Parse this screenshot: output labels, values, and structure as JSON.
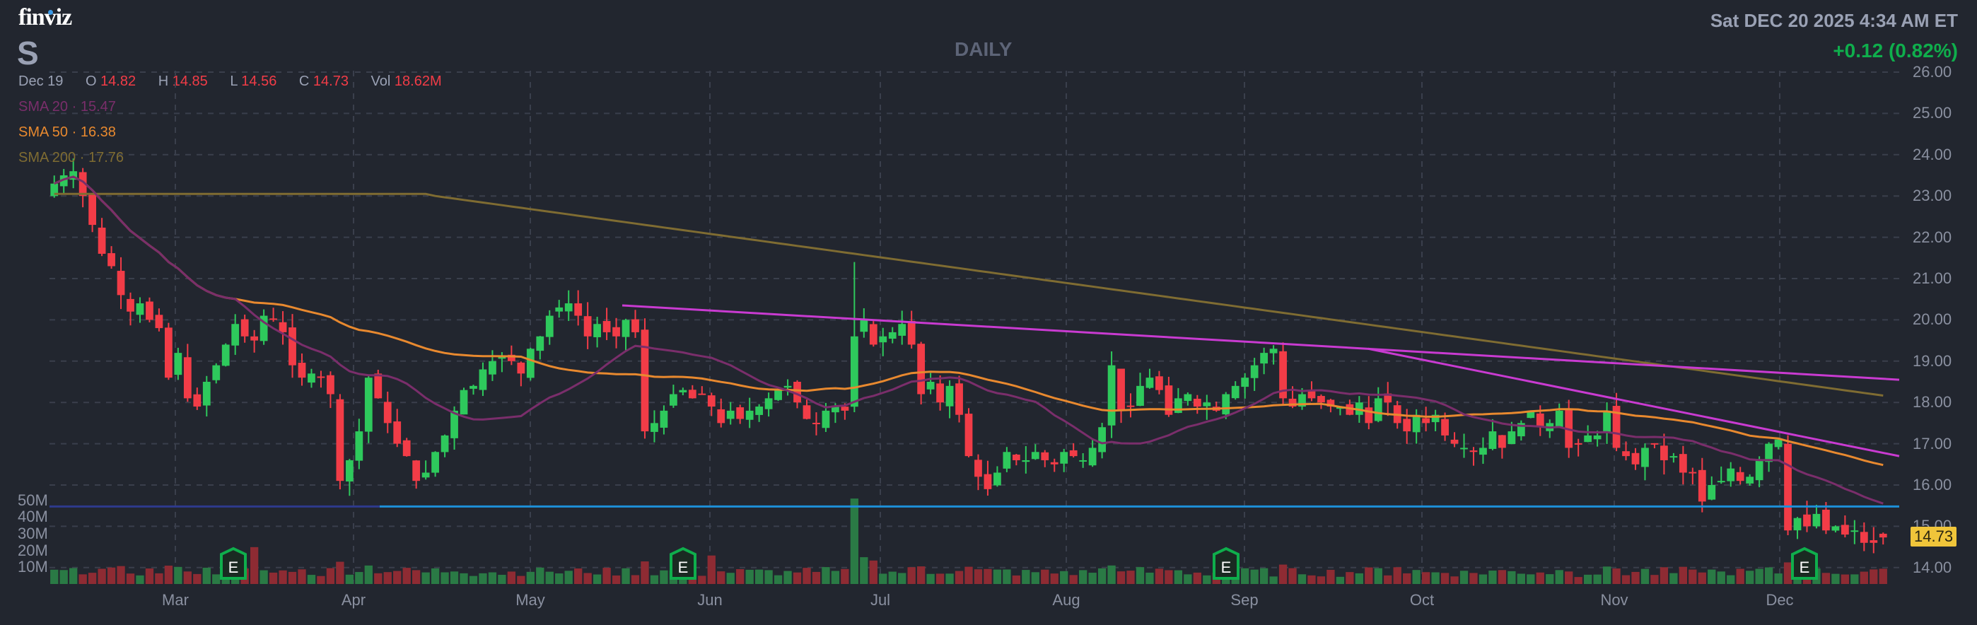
{
  "header": {
    "logo": "finviz",
    "ticker": "S",
    "timeframe": "DAILY",
    "datetime": "Sat DEC 20 2025 4:34 AM ET",
    "change": "+0.12 (0.82%)"
  },
  "ohlc": {
    "date": "Dec 19",
    "open_label": "O",
    "open": "14.82",
    "high_label": "H",
    "high": "14.85",
    "low_label": "L",
    "low": "14.56",
    "close_label": "C",
    "close": "14.73",
    "vol_label": "Vol",
    "vol": "18.62M"
  },
  "indicators": {
    "sma20": {
      "label": "SMA 20",
      "sep": "·",
      "value": "15.47",
      "color": "#7a2e6b"
    },
    "sma50": {
      "label": "SMA 50",
      "sep": "·",
      "value": "16.38",
      "color": "#e8892f"
    },
    "sma200": {
      "label": "SMA 200",
      "sep": "·",
      "value": "17.76",
      "color": "#7f6c32"
    }
  },
  "last_price_tag": "14.73",
  "colors": {
    "background": "#22262f",
    "up": "#2ec95c",
    "down": "#f23c47",
    "vol_up": "#2a7a45",
    "vol_down": "#8e2b33",
    "trendline": "#c93bd1",
    "support": "#1d8fd8",
    "grid": "#3a3f4c"
  },
  "chart_data": {
    "type": "candlestick",
    "title": "S DAILY",
    "ylabel": "Price",
    "ylim": [
      13.6,
      26.0
    ],
    "y_ticks": [
      "26.00",
      "25.00",
      "24.00",
      "23.00",
      "22.00",
      "21.00",
      "20.00",
      "19.00",
      "18.00",
      "17.00",
      "16.00",
      "15.00",
      "14.00"
    ],
    "x_ticks": [
      "Mar",
      "Apr",
      "May",
      "Jun",
      "Jul",
      "Aug",
      "Sep",
      "Oct",
      "Nov",
      "Dec"
    ],
    "volume_ticks": [
      "50M",
      "40M",
      "30M",
      "20M",
      "10M"
    ],
    "earnings_markers": [
      "Mar 12",
      "May 28",
      "Aug 27",
      "Dec 2"
    ],
    "last": {
      "date": "Dec 19",
      "open": 14.82,
      "high": 14.85,
      "low": 14.56,
      "close": 14.73,
      "volume": "18.62M"
    },
    "sma": {
      "sma20": 15.47,
      "sma50": 16.38,
      "sma200": 17.76
    },
    "trendlines": [
      {
        "name": "upper-resistance",
        "from": [
          "May 12",
          20.35
        ],
        "to": [
          "Dec 19",
          18.55
        ]
      },
      {
        "name": "lower-resistance",
        "from": [
          "Sep 22",
          19.3
        ],
        "to": [
          "Dec 19",
          16.7
        ]
      },
      {
        "name": "support",
        "y": 15.48
      }
    ],
    "closes_approx": [
      23.3,
      23.5,
      23.6,
      23.0,
      22.3,
      21.6,
      21.3,
      20.6,
      20.2,
      20.4,
      20.0,
      19.8,
      18.6,
      19.2,
      18.1,
      17.9,
      18.5,
      18.9,
      19.4,
      19.9,
      19.6,
      19.5,
      20.1,
      20.0,
      19.7,
      18.9,
      18.6,
      18.7,
      18.6,
      18.2,
      16.1,
      16.6,
      17.3,
      18.6,
      18.1,
      17.5,
      17.0,
      16.7,
      16.1,
      16.3,
      16.8,
      17.2,
      17.8,
      18.3,
      18.4,
      18.8,
      19.0,
      19.1,
      19.0,
      18.7,
      19.3,
      19.6,
      20.1,
      20.3,
      20.4,
      20.1,
      19.6,
      19.9,
      19.7,
      19.6,
      20.0,
      19.7,
      17.3,
      17.5,
      17.8,
      18.2,
      18.3,
      18.1,
      18.2,
      17.9,
      17.5,
      17.8,
      17.6,
      17.8,
      17.9,
      18.1,
      18.3,
      18.4,
      18.0,
      17.6,
      17.5,
      17.8,
      17.9,
      17.8,
      19.6,
      20.0,
      19.4,
      19.6,
      19.7,
      19.9,
      19.4,
      18.2,
      18.5,
      18.0,
      18.4,
      17.7,
      16.7,
      16.2,
      15.9,
      16.3,
      16.8,
      16.6,
      16.6,
      16.8,
      16.6,
      16.5,
      16.8,
      16.7,
      16.6,
      16.9,
      17.4,
      18.9,
      17.8,
      17.9,
      18.4,
      18.6,
      18.3,
      17.7,
      18.1,
      18.2,
      17.9,
      18.0,
      17.8,
      18.2,
      18.4,
      18.6,
      18.9,
      19.2,
      19.3,
      18.1,
      17.9,
      18.2,
      18.1,
      18.0,
      17.9,
      17.9,
      17.7,
      18.0,
      17.5,
      18.1,
      18.0,
      17.5,
      17.3,
      17.7,
      17.5,
      17.7,
      17.2,
      17.0,
      16.9,
      16.8,
      16.9,
      17.3,
      16.9,
      17.3,
      17.5,
      17.8,
      17.4,
      17.5,
      17.8,
      16.9,
      17.0,
      17.2,
      17.2,
      17.8,
      16.9,
      16.7,
      16.5,
      16.9,
      17.0,
      16.6,
      16.7,
      16.3,
      16.3,
      15.6,
      16.0,
      16.1,
      16.4,
      16.1,
      16.2,
      16.6,
      17.0,
      17.1,
      14.9,
      15.2,
      15.0,
      15.3,
      14.9,
      15.0,
      14.8,
      14.9,
      14.6,
      14.6,
      14.73
    ]
  }
}
